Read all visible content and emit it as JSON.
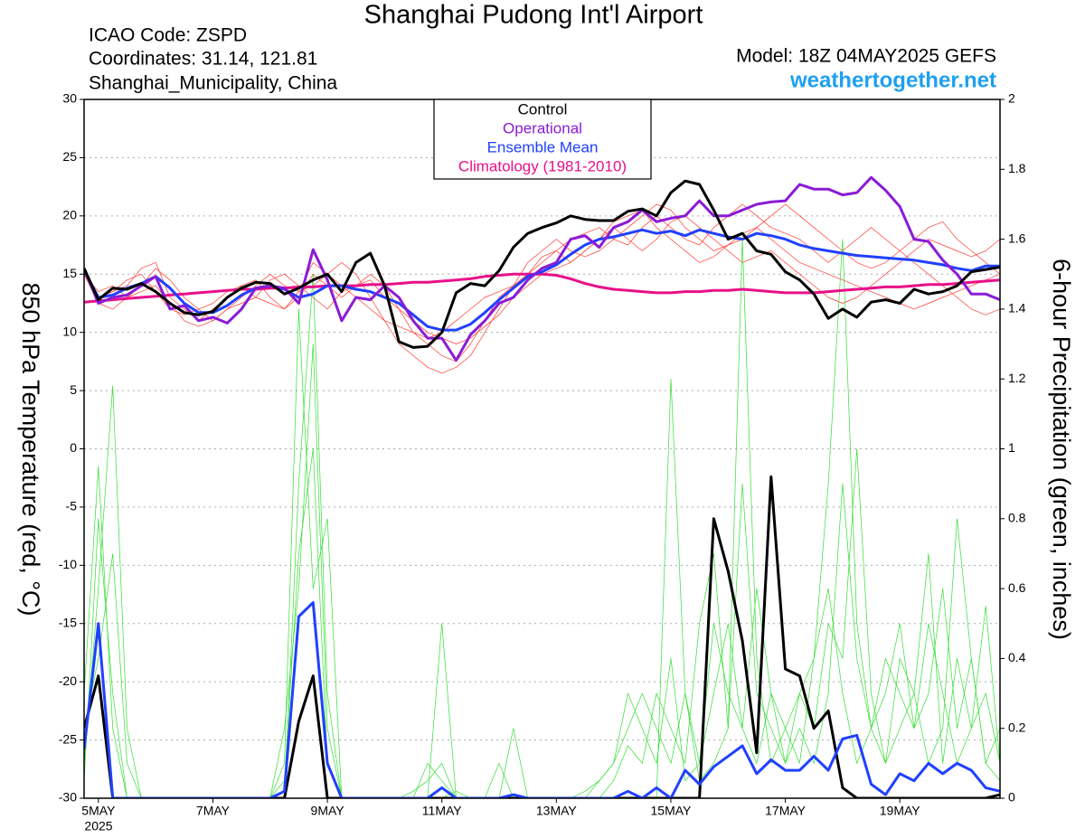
{
  "chart_data": {
    "type": "line",
    "title": "Shanghai Pudong Int'l Airport",
    "info_lines": [
      "ICAO Code: ZSPD",
      "Coordinates: 31.14, 121.81",
      "Shanghai_Municipality, China"
    ],
    "model": "Model: 18Z 04MAY2025 GEFS",
    "website": "weathertogether.net",
    "website_color": "#1ea0f0",
    "y_label": "850 hPa Temperature (red, °C)",
    "y2_label": "6-hour Precipitation (green, inches)",
    "x_sublabel": "2025",
    "xlim": [
      -0.25,
      15.75
    ],
    "xticks": [
      {
        "value": 0,
        "label": "5MAY"
      },
      {
        "value": 2,
        "label": "7MAY"
      },
      {
        "value": 4,
        "label": "9MAY"
      },
      {
        "value": 6,
        "label": "11MAY"
      },
      {
        "value": 8,
        "label": "13MAY"
      },
      {
        "value": 10,
        "label": "15MAY"
      },
      {
        "value": 12,
        "label": "17MAY"
      },
      {
        "value": 14,
        "label": "19MAY"
      }
    ],
    "ylim": [
      -30,
      30
    ],
    "yticks": [
      -30,
      -25,
      -20,
      -15,
      -10,
      -5,
      0,
      5,
      10,
      15,
      20,
      25,
      30
    ],
    "y2lim": [
      0,
      2
    ],
    "y2ticks": [
      0,
      0.2,
      0.4,
      0.6,
      0.8,
      1,
      1.2,
      1.4,
      1.6,
      1.8,
      2
    ],
    "grid": true,
    "legend": "top",
    "x": [
      -0.25,
      0,
      0.25,
      0.5,
      0.75,
      1,
      1.25,
      1.5,
      1.75,
      2,
      2.25,
      2.5,
      2.75,
      3,
      3.25,
      3.5,
      3.75,
      4,
      4.25,
      4.5,
      4.75,
      5,
      5.25,
      5.5,
      5.75,
      6,
      6.25,
      6.5,
      6.75,
      7,
      7.25,
      7.5,
      7.75,
      8,
      8.25,
      8.5,
      8.75,
      9,
      9.25,
      9.5,
      9.75,
      10,
      10.25,
      10.5,
      10.75,
      11,
      11.25,
      11.5,
      11.75,
      12,
      12.25,
      12.5,
      12.75,
      13,
      13.25,
      13.5,
      13.75,
      14,
      14.25,
      14.5,
      14.75,
      15,
      15.25,
      15.5,
      15.75
    ],
    "members": [
      {
        "color": "#ff3b30",
        "values": [
          15,
          13,
          13.5,
          14,
          15.5,
          16,
          13,
          12,
          11,
          12,
          13,
          14,
          14.5,
          13,
          12,
          13,
          15,
          14,
          13,
          14,
          15,
          14,
          12,
          10,
          9,
          8,
          7.5,
          9,
          11,
          13,
          14,
          15,
          16,
          17,
          18,
          18.5,
          19,
          18,
          17.5,
          19,
          20,
          19,
          18,
          17.5,
          19,
          20,
          21,
          20,
          19,
          18.5,
          18,
          17,
          16,
          17,
          18,
          19,
          18,
          17,
          16,
          15,
          14,
          13,
          12,
          11.5,
          12
        ]
      },
      {
        "color": "#ff3b30",
        "values": [
          15,
          12.5,
          12,
          13,
          13.5,
          14,
          12.5,
          11,
          10.5,
          11,
          12,
          13,
          14,
          15,
          14,
          13.5,
          14,
          15,
          16,
          15,
          13,
          11,
          9,
          8,
          7,
          6.5,
          7,
          8,
          10,
          12,
          14,
          16,
          17,
          18,
          17,
          16.5,
          17,
          18,
          19,
          20,
          21,
          20.5,
          19,
          18,
          17,
          17.5,
          18,
          19,
          20,
          21,
          20,
          19,
          18,
          17,
          16,
          15.5,
          16,
          17,
          18,
          19,
          19.5,
          18,
          17,
          16,
          15
        ]
      },
      {
        "color": "#ff3b30",
        "values": [
          15.5,
          13,
          13.5,
          14.5,
          15,
          13.5,
          12,
          11.5,
          12,
          12.5,
          13.5,
          14,
          13,
          12.5,
          12,
          13.5,
          16,
          15,
          14,
          13,
          12,
          11,
          10.5,
          10,
          9.5,
          10,
          11,
          12,
          13,
          13.5,
          14,
          15,
          16.5,
          17,
          16,
          17,
          18,
          19,
          18,
          17,
          18,
          19.5,
          20,
          19,
          18,
          17,
          16,
          16.5,
          17,
          16,
          15,
          14,
          13,
          12.5,
          13,
          14,
          15,
          16,
          17,
          18,
          17.5,
          17,
          16.5,
          17,
          18
        ]
      },
      {
        "color": "#ff3b30",
        "values": [
          15,
          13.5,
          14,
          13,
          14,
          15.5,
          14.5,
          13,
          12,
          11,
          12,
          12.5,
          13,
          14.5,
          15,
          14,
          13,
          12,
          13.5,
          14,
          14.5,
          13,
          12,
          11,
          10,
          9.5,
          9,
          9.5,
          10.5,
          11.5,
          13,
          14,
          15,
          15.5,
          16,
          17,
          18,
          19.5,
          20,
          20.5,
          19,
          18,
          17,
          16,
          16.5,
          17.5,
          18.5,
          19,
          18,
          17,
          16,
          15.5,
          15,
          14.5,
          14,
          13.5,
          13,
          12.5,
          12,
          12.5,
          13,
          13.5,
          14,
          14.5,
          15
        ]
      },
      {
        "color": "#33dd33",
        "axis": "y2",
        "values": [
          0.1,
          0.6,
          1.18,
          0.2,
          0,
          0,
          0,
          0,
          0,
          0,
          0,
          0,
          0,
          0,
          0,
          0.9,
          1.5,
          0.3,
          0,
          0,
          0,
          0,
          0,
          0,
          0,
          0.5,
          0,
          0,
          0,
          0,
          0.2,
          0,
          0,
          0,
          0,
          0,
          0,
          0,
          0,
          0,
          0,
          1.2,
          0.3,
          0.05,
          0.1,
          0.2,
          1.6,
          0.4,
          0.1,
          0.2,
          0.3,
          0.4,
          0.9,
          1.6,
          0.5,
          0.2,
          0.1,
          0.4,
          0.3,
          0.1,
          0.2,
          0.8,
          0.4,
          0.1,
          0.2
        ]
      },
      {
        "color": "#33dd33",
        "axis": "y2",
        "values": [
          0.05,
          0.8,
          0.3,
          0,
          0,
          0,
          0,
          0,
          0,
          0,
          0,
          0,
          0,
          0,
          0.1,
          1.4,
          0.6,
          0.8,
          0,
          0,
          0,
          0,
          0,
          0,
          0.1,
          0.05,
          0,
          0,
          0,
          0,
          0,
          0,
          0,
          0,
          0,
          0.02,
          0.05,
          0.1,
          0.3,
          0.2,
          0.1,
          0.4,
          0.05,
          0.1,
          0.5,
          0.3,
          0.2,
          0.6,
          0.3,
          0.1,
          0.2,
          0.1,
          0.3,
          0.9,
          0.4,
          0.2,
          0.3,
          0.5,
          0.2,
          0.3,
          0.6,
          0.2,
          0.4,
          0.1,
          0.05
        ]
      },
      {
        "color": "#33dd33",
        "axis": "y2",
        "values": [
          0.3,
          0.95,
          0.2,
          0,
          0,
          0,
          0,
          0,
          0,
          0,
          0,
          0,
          0,
          0,
          0.05,
          0.7,
          1.0,
          0.1,
          0,
          0,
          0,
          0,
          0,
          0.02,
          0.05,
          0.1,
          0,
          0,
          0,
          0.1,
          0,
          0,
          0,
          0,
          0,
          0,
          0.05,
          0.1,
          0.2,
          0.3,
          0.2,
          0.1,
          0.3,
          0.1,
          0.3,
          0.5,
          0.2,
          0.1,
          0.3,
          0.2,
          0.1,
          0.4,
          0.6,
          0.3,
          0.1,
          0.2,
          0.4,
          0.3,
          0.2,
          0.5,
          0.3,
          0.1,
          0.2,
          0.3,
          0.1
        ]
      },
      {
        "color": "#33dd33",
        "axis": "y2",
        "values": [
          0.2,
          0.4,
          0.7,
          0.1,
          0,
          0,
          0,
          0,
          0,
          0,
          0,
          0,
          0,
          0,
          0.2,
          0.6,
          1.3,
          0.2,
          0,
          0,
          0,
          0,
          0,
          0,
          0,
          0,
          0.02,
          0,
          0,
          0,
          0,
          0,
          0,
          0,
          0,
          0,
          0,
          0.05,
          0.15,
          0.1,
          0.3,
          0.2,
          0.1,
          0.5,
          0.7,
          0.2,
          0.9,
          0.3,
          0.2,
          0.1,
          0.3,
          0.2,
          0.5,
          0.4,
          1.0,
          0.3,
          0.1,
          0.2,
          0.3,
          0.7,
          0.1,
          0.4,
          0.2,
          0.55,
          0.1
        ]
      }
    ],
    "series": [
      {
        "color": "#000000",
        "axis": "y2",
        "values": [
          0.2,
          0.35,
          0,
          0,
          0,
          0,
          0,
          0,
          0,
          0,
          0,
          0,
          0,
          0,
          0,
          0.22,
          0.35,
          0,
          0,
          0,
          0,
          0,
          0,
          0,
          0,
          0,
          0,
          0,
          0,
          0,
          0,
          0,
          0,
          0,
          0,
          0,
          0,
          0,
          0,
          0,
          0,
          0,
          0,
          0,
          0.8,
          0.65,
          0.45,
          0.13,
          0.92,
          0.37,
          0.35,
          0.2,
          0.25,
          0.03,
          0,
          0,
          0,
          0,
          0,
          0,
          0,
          0,
          0,
          0,
          0.01
        ]
      },
      {
        "color": "#2040ff",
        "axis": "y2",
        "values": [
          0.14,
          0.5,
          0,
          0,
          0,
          0,
          0,
          0,
          0,
          0,
          0,
          0,
          0,
          0,
          0.02,
          0.52,
          0.56,
          0.1,
          0,
          0,
          0,
          0,
          0,
          0,
          0,
          0.03,
          0,
          0,
          0,
          0,
          0.01,
          0,
          0,
          0,
          0,
          0,
          0,
          0,
          0.02,
          0,
          0.03,
          0,
          0.08,
          0.04,
          0.09,
          0.12,
          0.15,
          0.07,
          0.11,
          0.08,
          0.08,
          0.12,
          0.08,
          0.17,
          0.18,
          0.04,
          0.01,
          0.07,
          0.05,
          0.1,
          0.07,
          0.1,
          0.08,
          0.03,
          0.02
        ]
      },
      {
        "name": "Climatology (1981-2010)",
        "color": "#e8108a",
        "values": [
          12.6,
          12.7,
          12.8,
          12.9,
          13.0,
          13.1,
          13.2,
          13.3,
          13.4,
          13.5,
          13.6,
          13.7,
          13.7,
          13.8,
          13.8,
          13.9,
          13.9,
          14.0,
          14.0,
          14.0,
          14.1,
          14.1,
          14.2,
          14.3,
          14.3,
          14.4,
          14.5,
          14.6,
          14.8,
          14.9,
          15.0,
          15.0,
          15.0,
          14.9,
          14.6,
          14.2,
          13.9,
          13.7,
          13.6,
          13.5,
          13.4,
          13.4,
          13.5,
          13.5,
          13.6,
          13.6,
          13.7,
          13.6,
          13.5,
          13.4,
          13.4,
          13.4,
          13.5,
          13.6,
          13.7,
          13.8,
          13.9,
          13.9,
          14.0,
          14.1,
          14.1,
          14.2,
          14.3,
          14.4,
          14.5
        ]
      },
      {
        "name": "Ensemble Mean",
        "color": "#2040ff",
        "values": [
          15.3,
          13,
          13.2,
          13.8,
          14.2,
          14.8,
          13.8,
          12.5,
          11.7,
          11.7,
          12.3,
          13.2,
          13.8,
          14,
          13.7,
          13,
          13.3,
          14,
          14,
          13.7,
          13.5,
          13,
          12.5,
          11.5,
          10.5,
          10.2,
          10.2,
          10.7,
          11.7,
          12.8,
          13.8,
          14.8,
          15.2,
          15.8,
          16.7,
          17.5,
          18,
          18.2,
          18.5,
          18.8,
          18.5,
          18.7,
          18.3,
          18.8,
          18.5,
          18.2,
          18,
          18.5,
          18.3,
          18,
          17.5,
          17.2,
          17,
          16.8,
          16.6,
          16.5,
          16.4,
          16.3,
          16.2,
          16,
          15.8,
          15.5,
          15.3,
          15.7,
          15.7
        ]
      },
      {
        "name": "Operational",
        "color": "#8a1bd6",
        "values": [
          15.5,
          12.5,
          13,
          13.2,
          14,
          14.8,
          12,
          12.3,
          11,
          11.3,
          10.8,
          12,
          13.8,
          14,
          13.8,
          12.5,
          17.1,
          14.5,
          11,
          13,
          12.8,
          14,
          13,
          11,
          9.5,
          9.5,
          7.6,
          9.8,
          11,
          12.5,
          13,
          14.5,
          15.5,
          16,
          18,
          18.3,
          17.3,
          19,
          19.5,
          20.5,
          19.5,
          19.8,
          20,
          21.3,
          20,
          20,
          20.5,
          21,
          21.2,
          21.3,
          22.7,
          22.3,
          22.3,
          21.8,
          22,
          23.3,
          22.2,
          20.8,
          18,
          17.8,
          16.2,
          15,
          13.3,
          13.3,
          12.8
        ]
      },
      {
        "name": "Control",
        "color": "#000000",
        "values": [
          15.5,
          12.8,
          13.8,
          13.7,
          14.2,
          13.5,
          12.5,
          11.7,
          11.5,
          11.8,
          13,
          13.8,
          14.3,
          14.2,
          13.3,
          13.8,
          14.5,
          15,
          13.5,
          16,
          16.8,
          14,
          9.2,
          8.7,
          8.8,
          10,
          13.4,
          14.2,
          14,
          15.3,
          17.3,
          18.5,
          19,
          19.4,
          20,
          19.7,
          19.6,
          19.6,
          20.4,
          20.6,
          20,
          22,
          23,
          22.7,
          20.5,
          18,
          18.5,
          17,
          16.7,
          15.2,
          14.5,
          13.3,
          11.2,
          12,
          11.3,
          12.6,
          12.8,
          12.5,
          13.7,
          13.3,
          13.5,
          14,
          15.2,
          15.4,
          15.6
        ]
      }
    ]
  }
}
